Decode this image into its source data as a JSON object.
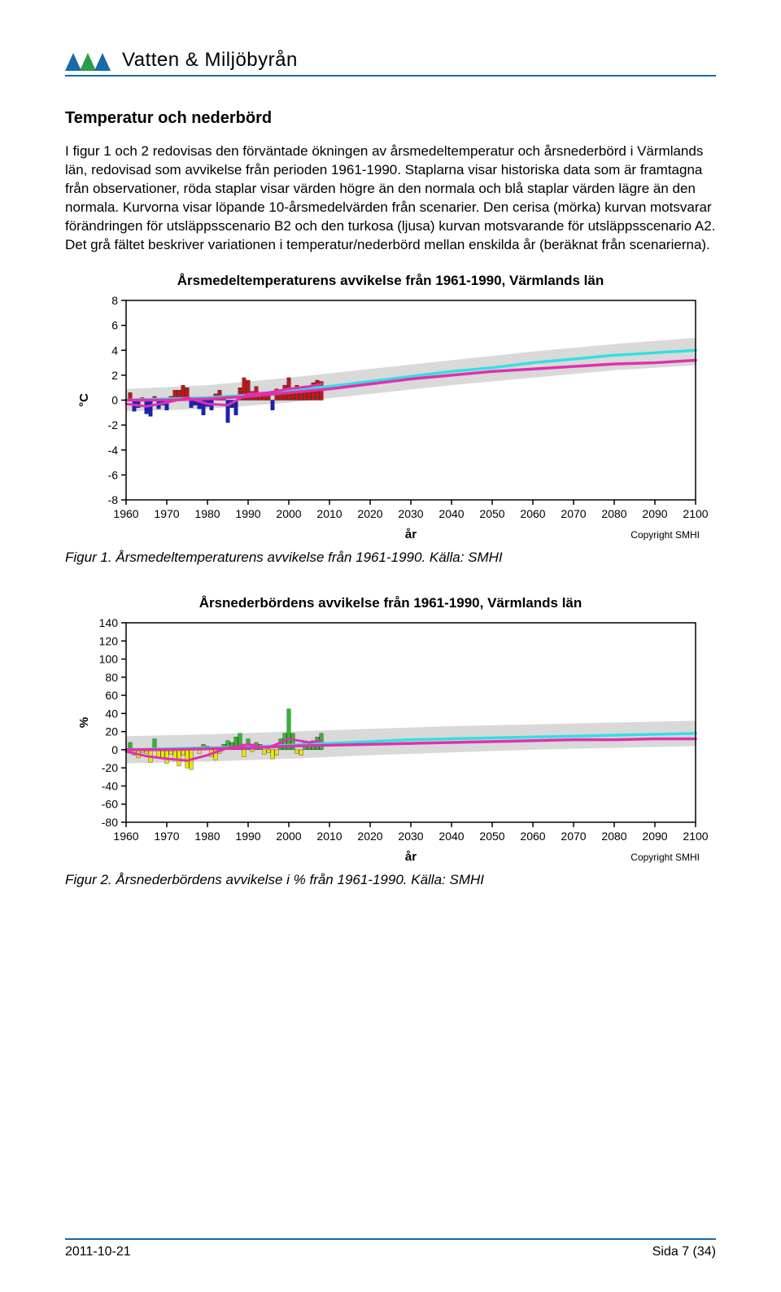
{
  "header": {
    "company": "Vatten & Miljöbyrån",
    "logo_colors": [
      "#1a6aa8",
      "#2e9b4a",
      "#1a6aa8"
    ]
  },
  "section_title": "Temperatur och nederbörd",
  "paragraph": "I figur 1 och 2 redovisas den förväntade ökningen av årsmedeltemperatur och årsnederbörd i Värmlands län, redovisad som avvikelse från perioden 1961-1990. Staplarna visar historiska data som är framtagna från observationer, röda staplar visar värden högre än den normala och blå staplar värden lägre än den normala. Kurvorna visar löpande 10-årsmedelvärden från scenarier. Den cerisa (mörka) kurvan motsvarar förändringen för utsläppsscenario B2 och den turkosa (ljusa) kurvan motsvarande för utsläppsscenario A2. Det grå fältet beskriver variationen i temperatur/nederbörd mellan enskilda år (beräknat från scenarierna).",
  "chart1": {
    "type": "bar+line",
    "title": "Årsmedeltemperaturens avvikelse från 1961-1990, Värmlands län",
    "ylabel": "°C",
    "xlabel": "år",
    "xlim": [
      1960,
      2100
    ],
    "xtick_step": 10,
    "ylim": [
      -8,
      8
    ],
    "ytick_step": 2,
    "title_fontsize": 17,
    "label_fontsize": 15,
    "tick_fontsize": 14,
    "background_color": "#ffffff",
    "axis_color": "#000000",
    "grey_band_color": "#d9d9d9",
    "line_a2_color": "#33e0e0",
    "line_b2_color": "#e030b0",
    "line_hist_color": "#e030b0",
    "bar_pos_color": "#c01818",
    "bar_neg_color": "#1820c0",
    "bar_years": [
      1961,
      1962,
      1963,
      1964,
      1965,
      1966,
      1967,
      1968,
      1969,
      1970,
      1971,
      1972,
      1973,
      1974,
      1975,
      1976,
      1977,
      1978,
      1979,
      1980,
      1981,
      1982,
      1983,
      1984,
      1985,
      1986,
      1987,
      1988,
      1989,
      1990,
      1991,
      1992,
      1993,
      1994,
      1995,
      1996,
      1997,
      1998,
      1999,
      2000,
      2001,
      2002,
      2003,
      2004,
      2005,
      2006,
      2007,
      2008
    ],
    "bar_values": [
      0.6,
      -0.9,
      -0.6,
      0.2,
      -1.1,
      -1.3,
      0.3,
      -0.7,
      -0.4,
      -0.8,
      0.3,
      0.8,
      0.8,
      1.2,
      1.0,
      -0.6,
      -0.4,
      -0.7,
      -1.2,
      -0.5,
      -0.8,
      0.5,
      0.8,
      0.3,
      -1.8,
      -0.6,
      -1.2,
      1.0,
      1.8,
      1.6,
      0.7,
      1.1,
      0.4,
      0.6,
      0.4,
      -0.8,
      0.9,
      0.6,
      1.2,
      1.8,
      0.8,
      1.2,
      0.9,
      0.7,
      1.1,
      1.4,
      1.6,
      1.5
    ],
    "line_a2": [
      [
        1960,
        0.0
      ],
      [
        1970,
        0.1
      ],
      [
        1980,
        0.2
      ],
      [
        1990,
        0.4
      ],
      [
        2000,
        0.8
      ],
      [
        2010,
        1.1
      ],
      [
        2020,
        1.5
      ],
      [
        2030,
        1.9
      ],
      [
        2040,
        2.3
      ],
      [
        2050,
        2.6
      ],
      [
        2060,
        3.0
      ],
      [
        2070,
        3.3
      ],
      [
        2080,
        3.6
      ],
      [
        2090,
        3.8
      ],
      [
        2100,
        4.0
      ]
    ],
    "line_b2": [
      [
        1960,
        0.0
      ],
      [
        1970,
        0.0
      ],
      [
        1980,
        0.1
      ],
      [
        1990,
        0.3
      ],
      [
        2000,
        0.6
      ],
      [
        2010,
        0.9
      ],
      [
        2020,
        1.3
      ],
      [
        2030,
        1.7
      ],
      [
        2040,
        2.0
      ],
      [
        2050,
        2.3
      ],
      [
        2060,
        2.5
      ],
      [
        2070,
        2.7
      ],
      [
        2080,
        2.9
      ],
      [
        2090,
        3.0
      ],
      [
        2100,
        3.2
      ]
    ],
    "line_hist": [
      [
        1960,
        -0.3
      ],
      [
        1965,
        -0.5
      ],
      [
        1970,
        -0.2
      ],
      [
        1975,
        0.2
      ],
      [
        1980,
        -0.3
      ],
      [
        1985,
        -0.4
      ],
      [
        1990,
        0.5
      ],
      [
        1995,
        0.6
      ],
      [
        2000,
        0.9
      ],
      [
        2005,
        1.1
      ],
      [
        2008,
        1.3
      ]
    ],
    "grey_upper": [
      [
        1960,
        0.9
      ],
      [
        1980,
        1.2
      ],
      [
        2000,
        1.8
      ],
      [
        2020,
        2.5
      ],
      [
        2040,
        3.2
      ],
      [
        2060,
        3.9
      ],
      [
        2080,
        4.5
      ],
      [
        2100,
        5.0
      ]
    ],
    "grey_lower": [
      [
        1960,
        -0.9
      ],
      [
        1980,
        -0.7
      ],
      [
        2000,
        -0.2
      ],
      [
        2020,
        0.5
      ],
      [
        2040,
        1.2
      ],
      [
        2060,
        1.8
      ],
      [
        2080,
        2.4
      ],
      [
        2100,
        2.8
      ]
    ],
    "copyright": "Copyright SMHI"
  },
  "caption1": "Figur 1. Årsmedeltemperaturens avvikelse från 1961-1990. Källa: SMHI",
  "chart2": {
    "type": "bar+line",
    "title": "Årsnederbördens avvikelse från 1961-1990, Värmlands län",
    "ylabel": "%",
    "xlabel": "år",
    "xlim": [
      1960,
      2100
    ],
    "xtick_step": 10,
    "ylim": [
      -80,
      140
    ],
    "ytick_step": 20,
    "title_fontsize": 17,
    "label_fontsize": 15,
    "tick_fontsize": 14,
    "background_color": "#ffffff",
    "axis_color": "#000000",
    "grey_band_color": "#d9d9d9",
    "line_a2_color": "#33e0e0",
    "line_b2_color": "#e030b0",
    "line_hist_color": "#e030b0",
    "bar_pos_color": "#2eb82e",
    "bar_neg_color": "#e6e600",
    "bar_years": [
      1961,
      1962,
      1963,
      1964,
      1965,
      1966,
      1967,
      1968,
      1969,
      1970,
      1971,
      1972,
      1973,
      1974,
      1975,
      1976,
      1977,
      1978,
      1979,
      1980,
      1981,
      1982,
      1983,
      1984,
      1985,
      1986,
      1987,
      1988,
      1989,
      1990,
      1991,
      1992,
      1993,
      1994,
      1995,
      1996,
      1997,
      1998,
      1999,
      2000,
      2001,
      2002,
      2003,
      2004,
      2005,
      2006,
      2007,
      2008
    ],
    "bar_values": [
      8,
      -6,
      -9,
      -3,
      -4,
      -14,
      12,
      -8,
      -10,
      -15,
      -5,
      -12,
      -18,
      -6,
      -20,
      -22,
      2,
      -4,
      6,
      4,
      -8,
      -11,
      -4,
      6,
      10,
      8,
      14,
      18,
      -8,
      12,
      -2,
      8,
      6,
      -5,
      -3,
      -10,
      -6,
      12,
      18,
      45,
      18,
      -4,
      -6,
      8,
      6,
      10,
      14,
      18
    ],
    "line_a2": [
      [
        1960,
        0
      ],
      [
        1970,
        1
      ],
      [
        1980,
        2
      ],
      [
        1990,
        3
      ],
      [
        2000,
        5
      ],
      [
        2010,
        7
      ],
      [
        2020,
        9
      ],
      [
        2030,
        11
      ],
      [
        2040,
        12
      ],
      [
        2050,
        13
      ],
      [
        2060,
        14
      ],
      [
        2070,
        15
      ],
      [
        2080,
        16
      ],
      [
        2090,
        17
      ],
      [
        2100,
        18
      ]
    ],
    "line_b2": [
      [
        1960,
        0
      ],
      [
        1970,
        0
      ],
      [
        1980,
        1
      ],
      [
        1990,
        2
      ],
      [
        2000,
        4
      ],
      [
        2010,
        5
      ],
      [
        2020,
        6
      ],
      [
        2030,
        7
      ],
      [
        2040,
        8
      ],
      [
        2050,
        9
      ],
      [
        2060,
        10
      ],
      [
        2070,
        11
      ],
      [
        2080,
        11
      ],
      [
        2090,
        12
      ],
      [
        2100,
        12
      ]
    ],
    "line_hist": [
      [
        1960,
        -2
      ],
      [
        1965,
        -7
      ],
      [
        1970,
        -10
      ],
      [
        1975,
        -12
      ],
      [
        1980,
        -6
      ],
      [
        1985,
        2
      ],
      [
        1990,
        6
      ],
      [
        1995,
        2
      ],
      [
        2000,
        12
      ],
      [
        2005,
        8
      ],
      [
        2008,
        10
      ]
    ],
    "grey_upper": [
      [
        1960,
        15
      ],
      [
        1980,
        17
      ],
      [
        2000,
        20
      ],
      [
        2020,
        23
      ],
      [
        2040,
        26
      ],
      [
        2060,
        28
      ],
      [
        2080,
        30
      ],
      [
        2100,
        32
      ]
    ],
    "grey_lower": [
      [
        1960,
        -15
      ],
      [
        1980,
        -13
      ],
      [
        2000,
        -10
      ],
      [
        2020,
        -6
      ],
      [
        2040,
        -3
      ],
      [
        2060,
        0
      ],
      [
        2080,
        2
      ],
      [
        2100,
        4
      ]
    ],
    "copyright": "Copyright SMHI"
  },
  "caption2": "Figur 2. Årsnederbördens avvikelse i % från 1961-1990. Källa: SMHI",
  "footer": {
    "date": "2011-10-21",
    "page": "Sida 7 (34)"
  }
}
